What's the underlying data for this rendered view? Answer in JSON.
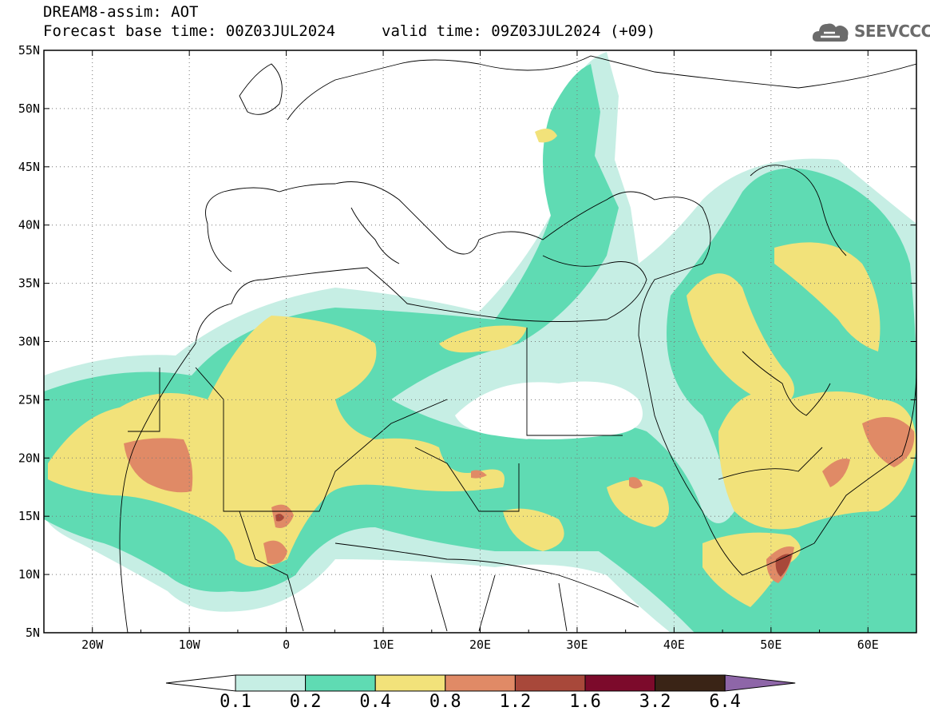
{
  "header": {
    "line1": "DREAM8-assim: AOT",
    "base_time": "Forecast base time: 00Z03JUL2024",
    "valid_time": "valid time: 09Z03JUL2024 (+09)"
  },
  "logo": {
    "text": "SEEVCCC",
    "icon": "cloud-icon"
  },
  "map": {
    "lon_range": [
      -25,
      65
    ],
    "lat_range": [
      5,
      55
    ],
    "lat_ticks": [
      "5N",
      "10N",
      "15N",
      "20N",
      "25N",
      "30N",
      "35N",
      "40N",
      "45N",
      "50N",
      "55N"
    ],
    "lon_ticks": [
      "20W",
      "10W",
      "0",
      "10E",
      "20E",
      "30E",
      "40E",
      "50E",
      "60E"
    ],
    "grid": true
  },
  "colorbar": {
    "labels": [
      "0.1",
      "0.2",
      "0.4",
      "0.8",
      "1.2",
      "1.6",
      "3.2",
      "6.4"
    ],
    "colors": {
      "lt0.1": "#ffffff",
      "0.1-0.2": "#c6eee4",
      "0.2-0.4": "#5fdbb3",
      "0.4-0.8": "#f2e27a",
      "0.8-1.2": "#e08a66",
      "1.2-1.6": "#a8483a",
      "1.6-3.2": "#7c0a2b",
      "3.2-6.4": "#3a2416",
      "gt6.4": "#8e66a8"
    }
  }
}
